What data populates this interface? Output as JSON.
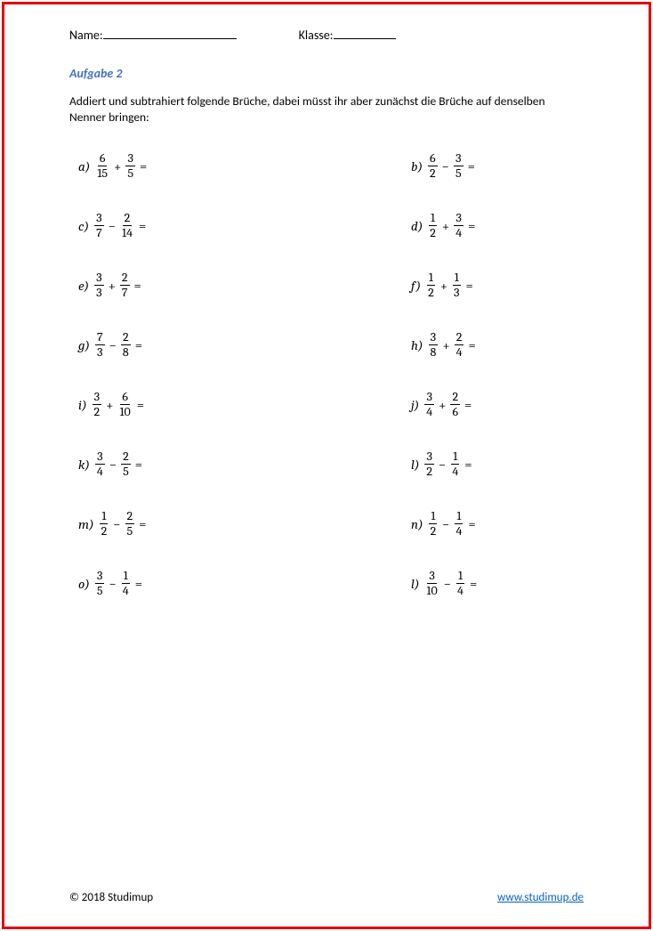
{
  "header": {
    "name_label": "Name:",
    "class_label": "Klasse:"
  },
  "task": {
    "title": "Aufgabe 2",
    "instruction": "Addiert und subtrahiert folgende Brüche, dabei müsst ihr aber zunächst die Brüche auf denselben Nenner bringen:"
  },
  "problems": [
    {
      "label": "a)",
      "n1": "6",
      "d1": "15",
      "op": "+",
      "n2": "3",
      "d2": "5"
    },
    {
      "label": "b)",
      "n1": "6",
      "d1": "2",
      "op": "−",
      "n2": "3",
      "d2": "5"
    },
    {
      "label": "c)",
      "n1": "3",
      "d1": "7",
      "op": "−",
      "n2": "2",
      "d2": "14"
    },
    {
      "label": "d)",
      "n1": "1",
      "d1": "2",
      "op": "+",
      "n2": "3",
      "d2": "4"
    },
    {
      "label": "e)",
      "n1": "3",
      "d1": "3",
      "op": "+",
      "n2": "2",
      "d2": "7"
    },
    {
      "label": "f)",
      "n1": "1",
      "d1": "2",
      "op": "+",
      "n2": "1",
      "d2": "3"
    },
    {
      "label": "g)",
      "n1": "7",
      "d1": "3",
      "op": "−",
      "n2": "2",
      "d2": "8"
    },
    {
      "label": "h)",
      "n1": "3",
      "d1": "8",
      "op": "+",
      "n2": "2",
      "d2": "4"
    },
    {
      "label": "i)",
      "n1": "3",
      "d1": "2",
      "op": "+",
      "n2": "6",
      "d2": "10"
    },
    {
      "label": "j)",
      "n1": "3",
      "d1": "4",
      "op": "+",
      "n2": "2",
      "d2": "6"
    },
    {
      "label": "k)",
      "n1": "3",
      "d1": "4",
      "op": "−",
      "n2": "2",
      "d2": "5"
    },
    {
      "label": "l)",
      "n1": "3",
      "d1": "2",
      "op": "−",
      "n2": "1",
      "d2": "4"
    },
    {
      "label": "m)",
      "n1": "1",
      "d1": "2",
      "op": "−",
      "n2": "2",
      "d2": "5"
    },
    {
      "label": "n)",
      "n1": "1",
      "d1": "2",
      "op": "−",
      "n2": "1",
      "d2": "4"
    },
    {
      "label": "o)",
      "n1": "3",
      "d1": "5",
      "op": "−",
      "n2": "1",
      "d2": "4"
    },
    {
      "label": "l)",
      "n1": "3",
      "d1": "10",
      "op": "−",
      "n2": "1",
      "d2": "4"
    }
  ],
  "footer": {
    "copyright": "© 2018 Studimup",
    "link": "www.studimup.de"
  },
  "styling": {
    "border_color": "#e60000",
    "title_color": "#4472c4",
    "link_color": "#0563c1",
    "text_color": "#000000",
    "background": "#ffffff",
    "body_font": "Calibri",
    "math_font": "Cambria Math"
  }
}
